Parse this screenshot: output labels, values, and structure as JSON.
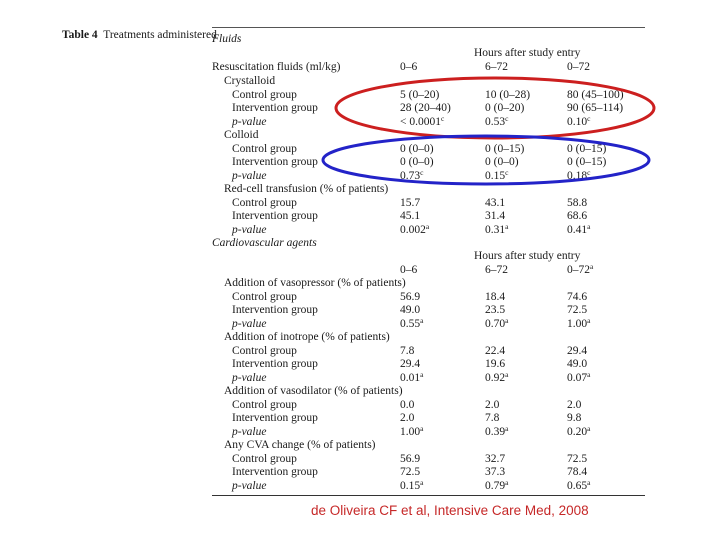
{
  "table": {
    "number_label": "Table 4",
    "title": "Treatments administered",
    "fluids": {
      "section_title": "Fluids",
      "hours_header": "Hours after study entry",
      "main_label": "Resuscitation fluids (ml/kg)",
      "periods": [
        "0–6",
        "6–72",
        "0–72"
      ],
      "groups": [
        {
          "name": "Crystalloid",
          "rows": [
            {
              "label": "Control group",
              "v": [
                "5 (0–20)",
                "10 (0–28)",
                "80 (45–100)"
              ]
            },
            {
              "label": "Intervention group",
              "v": [
                "28 (20–40)",
                "0 (0–20)",
                "90 (65–114)"
              ]
            },
            {
              "label": "p-value",
              "v": [
                "< 0.0001",
                "0.53",
                "0.10"
              ],
              "sup": [
                "c",
                "c",
                "c"
              ]
            }
          ]
        },
        {
          "name": "Colloid",
          "rows": [
            {
              "label": "Control group",
              "v": [
                "0 (0–0)",
                "0 (0–15)",
                "0 (0–15)"
              ]
            },
            {
              "label": "Intervention group",
              "v": [
                "0 (0–0)",
                "0 (0–0)",
                "0 (0–15)"
              ]
            },
            {
              "label": "p-value",
              "v": [
                "0.73",
                "0.15",
                "0.18"
              ],
              "sup": [
                "c",
                "c",
                "c"
              ]
            }
          ]
        },
        {
          "name": "Red-cell transfusion (% of patients)",
          "rows": [
            {
              "label": "Control group",
              "v": [
                "15.7",
                "43.1",
                "58.8"
              ]
            },
            {
              "label": "Intervention group",
              "v": [
                "45.1",
                "31.4",
                "68.6"
              ]
            },
            {
              "label": "p-value",
              "v": [
                "0.002",
                "0.31",
                "0.41"
              ],
              "sup": [
                "a",
                "a",
                "a"
              ]
            }
          ]
        }
      ]
    },
    "cardio": {
      "section_title": "Cardiovascular agents",
      "hours_header": "Hours after study entry",
      "periods": [
        "0–6",
        "6–72",
        "0–72"
      ],
      "period_sup": [
        "",
        "",
        "a"
      ],
      "groups": [
        {
          "name": "Addition of vasopressor (% of patients)",
          "rows": [
            {
              "label": "Control group",
              "v": [
                "56.9",
                "18.4",
                "74.6"
              ]
            },
            {
              "label": "Intervention group",
              "v": [
                "49.0",
                "23.5",
                "72.5"
              ]
            },
            {
              "label": "p-value",
              "v": [
                "0.55",
                "0.70",
                "1.00"
              ],
              "sup": [
                "a",
                "a",
                "a"
              ]
            }
          ]
        },
        {
          "name": "Addition of inotrope (% of patients)",
          "rows": [
            {
              "label": "Control group",
              "v": [
                "7.8",
                "22.4",
                "29.4"
              ]
            },
            {
              "label": "Intervention group",
              "v": [
                "29.4",
                "19.6",
                "49.0"
              ]
            },
            {
              "label": "p-value",
              "v": [
                "0.01",
                "0.92",
                "0.07"
              ],
              "sup": [
                "a",
                "a",
                "a"
              ]
            }
          ]
        },
        {
          "name": "Addition of vasodilator (% of patients)",
          "rows": [
            {
              "label": "Control group",
              "v": [
                "0.0",
                "2.0",
                "2.0"
              ]
            },
            {
              "label": "Intervention group",
              "v": [
                "2.0",
                "7.8",
                "9.8"
              ]
            },
            {
              "label": "p-value",
              "v": [
                "1.00",
                "0.39",
                "0.20"
              ],
              "sup": [
                "a",
                "a",
                "a"
              ]
            }
          ]
        },
        {
          "name": "Any CVA change (% of patients)",
          "rows": [
            {
              "label": "Control group",
              "v": [
                "56.9",
                "32.7",
                "72.5"
              ]
            },
            {
              "label": "Intervention group",
              "v": [
                "72.5",
                "37.3",
                "78.4"
              ]
            },
            {
              "label": "p-value",
              "v": [
                "0.15",
                "0.79",
                "0.65"
              ],
              "sup": [
                "a",
                "a",
                "a"
              ]
            }
          ]
        }
      ]
    }
  },
  "annotations": {
    "red_oval_color": "#cc1f1f",
    "blue_oval_color": "#2323c8"
  },
  "citation": "de Oliveira CF et al, Intensive Care Med, 2008"
}
